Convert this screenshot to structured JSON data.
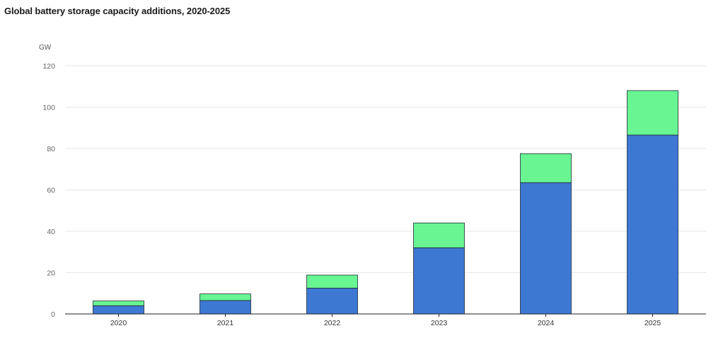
{
  "title": "Global battery storage capacity additions, 2020-2025",
  "chart_data": {
    "type": "bar",
    "stacked": true,
    "title": "Global battery storage capacity additions, 2020-2025",
    "ylabel": "GW",
    "xlabel": "",
    "categories": [
      "2020",
      "2021",
      "2022",
      "2023",
      "2024",
      "2025"
    ],
    "series": [
      {
        "color": "#3d78d3",
        "values": [
          4,
          6.5,
          12.5,
          32,
          63.5,
          86.5
        ]
      },
      {
        "color": "#68f592",
        "values": [
          2.3,
          3.2,
          6.3,
          12,
          14,
          21.5
        ]
      }
    ],
    "ylim": [
      0,
      120
    ],
    "yticks": [
      0,
      20,
      40,
      60,
      80,
      100,
      120
    ],
    "grid": true,
    "legend": "none"
  }
}
